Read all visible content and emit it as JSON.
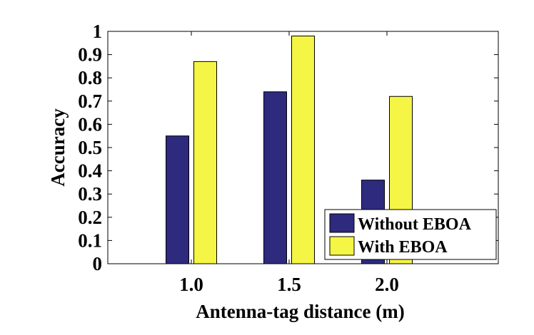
{
  "chart_data": {
    "type": "bar",
    "categories": [
      "1.0",
      "1.5",
      "2.0"
    ],
    "series": [
      {
        "name": "Without EBOA",
        "values": [
          0.55,
          0.74,
          0.36
        ],
        "color": "#2e2a7e"
      },
      {
        "name": "With EBOA",
        "values": [
          0.87,
          0.98,
          0.72
        ],
        "color": "#f5f545"
      }
    ],
    "xlabel": "Antenna-tag distance (m)",
    "ylabel": "Accuracy",
    "ylim": [
      0,
      1
    ],
    "yticks": [
      "0",
      "0.1",
      "0.2",
      "0.3",
      "0.4",
      "0.5",
      "0.6",
      "0.7",
      "0.8",
      "0.9",
      "1"
    ],
    "legend_position": "bottom-right",
    "grid": false
  }
}
